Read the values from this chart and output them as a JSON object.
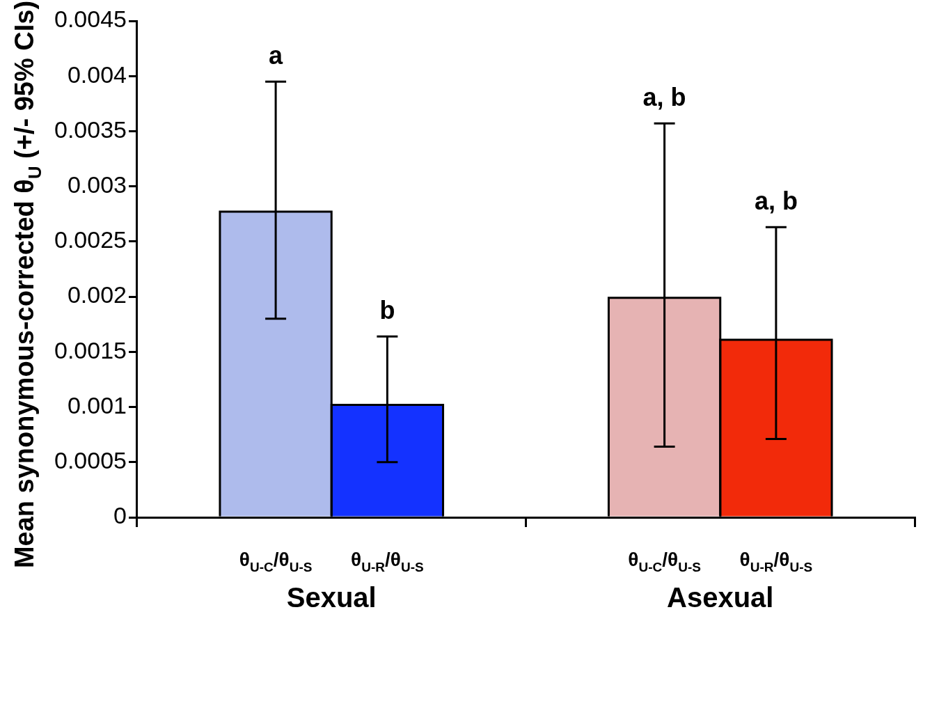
{
  "chart_data": {
    "type": "bar",
    "ylabel": "Mean synonymous-corrected θ$_{U}$ (+/- 95% CIs)",
    "categories": [
      "Sexual",
      "Asexual"
    ],
    "series": [
      {
        "name": "θ$_{U-C}$/θ$_{U-S}$",
        "colors": [
          "#aebbec",
          "#e6b3b3"
        ],
        "values": [
          0.00277,
          0.00199
        ],
        "errors": [
          [
            0.0018,
            0.00395
          ],
          [
            0.00064,
            0.00357
          ]
        ]
      },
      {
        "name": "θ$_{U-R}$/θ$_{U-S}$",
        "colors": [
          "#1432ff",
          "#f22a0a"
        ],
        "values": [
          0.00102,
          0.00161
        ],
        "errors": [
          [
            0.0005,
            0.00164
          ],
          [
            0.00071,
            0.00263
          ]
        ]
      }
    ],
    "annotations": [
      "a",
      "b",
      "a, b",
      "a, b"
    ],
    "ylim": [
      0,
      0.0045
    ],
    "yticks": [
      0,
      0.0005,
      0.001,
      0.0015,
      0.002,
      0.0025,
      0.003,
      0.0035,
      0.004,
      0.0045
    ],
    "legend": false,
    "grid": false
  }
}
